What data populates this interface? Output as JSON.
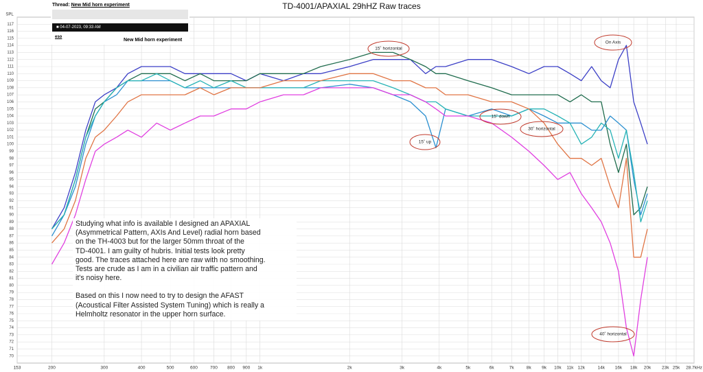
{
  "header": {
    "thread_label": "Thread:",
    "thread_title": "New Mid horn experiment",
    "date": "04-07-2023, 09:33 AM",
    "user": "eso",
    "post_title": "New Mid horn experiment"
  },
  "note": {
    "paragraphs": [
      [
        "Studying what info is available I designed an APAXIAL",
        "(Asymmetrical Pattern, AXIs And Level) radial horn based",
        "on the TH-4003 but for the larger 50mm throat of the",
        "TD-4001. I am guilty of hubris. Initial tests look pretty",
        "good. The traces attached here are raw with no smoothing.",
        "Tests are crude as I am in a civilian air traffic pattern and",
        "it's noisy here."
      ],
      [
        "Based on this I now need to try to design the AFAST",
        "(Acoustical Filter Assisted System Tuning) which is really a",
        "Helmholtz resonator in the upper horn surface."
      ]
    ]
  },
  "chart_data": {
    "type": "line",
    "title": "TD-4001/APAXIAL 29hHZ Raw traces",
    "y_label": "SPL",
    "log_x": true,
    "grid": true,
    "xlim": [
      153,
      28700
    ],
    "ylim": [
      69,
      118
    ],
    "xticks": [
      153,
      200,
      300,
      400,
      500,
      600,
      700,
      800,
      900,
      {
        "value": 1000,
        "label": "1k"
      },
      {
        "value": 2000,
        "label": "2k"
      },
      {
        "value": 3000,
        "label": "3k"
      },
      {
        "value": 4000,
        "label": "4k"
      },
      {
        "value": 5000,
        "label": "5k"
      },
      {
        "value": 6000,
        "label": "6k"
      },
      {
        "value": 7000,
        "label": "7k"
      },
      {
        "value": 8000,
        "label": "8k"
      },
      {
        "value": 9000,
        "label": "9k"
      },
      {
        "value": 10000,
        "label": "10k"
      },
      {
        "value": 11000,
        "label": "11k"
      },
      {
        "value": 12000,
        "label": "12k"
      },
      {
        "value": 14000,
        "label": "14k"
      },
      {
        "value": 16000,
        "label": "16k"
      },
      {
        "value": 18000,
        "label": "18k"
      },
      {
        "value": 20000,
        "label": "20k"
      },
      {
        "value": 23000,
        "label": "23k"
      },
      {
        "value": 25000,
        "label": "25k"
      },
      {
        "value": 28700,
        "label": "28.7kHz"
      }
    ],
    "yticks": [
      70,
      71,
      72,
      73,
      74,
      75,
      76,
      77,
      78,
      79,
      80,
      81,
      82,
      83,
      84,
      85,
      86,
      87,
      88,
      89,
      90,
      91,
      92,
      93,
      94,
      95,
      96,
      97,
      98,
      99,
      100,
      101,
      102,
      103,
      104,
      105,
      106,
      107,
      108,
      109,
      110,
      111,
      112,
      113,
      114,
      115,
      116,
      117
    ],
    "x": [
      200,
      220,
      240,
      260,
      280,
      300,
      330,
      360,
      400,
      450,
      500,
      560,
      630,
      700,
      800,
      900,
      1000,
      1200,
      1400,
      1600,
      2000,
      2400,
      2800,
      3200,
      3600,
      3900,
      4200,
      5000,
      6000,
      7000,
      8000,
      9000,
      10000,
      11000,
      12000,
      13000,
      14000,
      15000,
      16000,
      17000,
      18000,
      19000,
      20000
    ],
    "series": [
      {
        "name": "On Axis",
        "color": "#3b3fc6",
        "values": [
          88,
          91,
          96,
          102,
          106,
          107,
          108,
          110,
          111,
          111,
          111,
          110,
          110,
          110,
          110,
          109,
          110,
          109,
          110,
          110,
          111,
          112,
          112,
          112,
          110,
          111,
          111,
          112,
          112,
          111,
          110,
          111,
          111,
          110,
          109,
          111,
          109,
          108,
          112,
          114,
          106,
          103,
          100
        ]
      },
      {
        "name": "15˚ horizontal",
        "color": "#1e6b4c",
        "values": [
          88,
          90,
          95,
          101,
          105,
          106,
          108,
          109,
          110,
          110,
          110,
          109,
          110,
          109,
          109,
          109,
          110,
          110,
          110,
          111,
          112,
          113,
          113,
          112,
          111,
          110,
          110,
          109,
          108,
          107,
          107,
          107,
          107,
          106,
          107,
          106,
          106,
          100,
          96,
          100,
          90,
          91,
          94
        ]
      },
      {
        "name": "15˚ up",
        "color": "#2b8fd0",
        "values": [
          87,
          90,
          94,
          100,
          104,
          106,
          107,
          109,
          109,
          109,
          109,
          108,
          108,
          108,
          108,
          108,
          108,
          108,
          108,
          108,
          108.5,
          108,
          107,
          106,
          104,
          99.5,
          105,
          104,
          105,
          104,
          105,
          104,
          103,
          103,
          103,
          102,
          102,
          104,
          103,
          102,
          95,
          90,
          93
        ]
      },
      {
        "name": "15˚ down",
        "color": "#27b3b6",
        "values": [
          88,
          90,
          95,
          101,
          104,
          106,
          108,
          109,
          109,
          110,
          109,
          108,
          109,
          108,
          109,
          108,
          108,
          108,
          108,
          109,
          109,
          109,
          108,
          107,
          106,
          106,
          105,
          104,
          104,
          104,
          105,
          105,
          104,
          103,
          100,
          101,
          103,
          102,
          98,
          102,
          96,
          89,
          92
        ]
      },
      {
        "name": "30˚ horizontal",
        "color": "#e07444",
        "values": [
          86,
          88,
          92,
          98,
          101,
          102,
          104,
          106,
          107,
          107,
          107,
          107,
          108,
          107,
          108,
          108,
          108,
          109,
          109,
          109,
          110,
          110,
          109,
          109,
          108,
          108,
          107,
          107,
          106,
          106,
          105,
          103,
          100,
          98,
          98,
          97,
          98,
          94,
          91,
          98,
          84,
          84,
          88
        ]
      },
      {
        "name": "40˚ horizontal",
        "color": "#e03fe0",
        "values": [
          83,
          86,
          90,
          95,
          99,
          100,
          101,
          102,
          101,
          103,
          102,
          103,
          104,
          104,
          105,
          105,
          106,
          107,
          107,
          108,
          108,
          108,
          107,
          107,
          106,
          105,
          104,
          104,
          103,
          101,
          99,
          97,
          95,
          96,
          93,
          91,
          89,
          86,
          82,
          74,
          70,
          78,
          84
        ]
      }
    ]
  }
}
